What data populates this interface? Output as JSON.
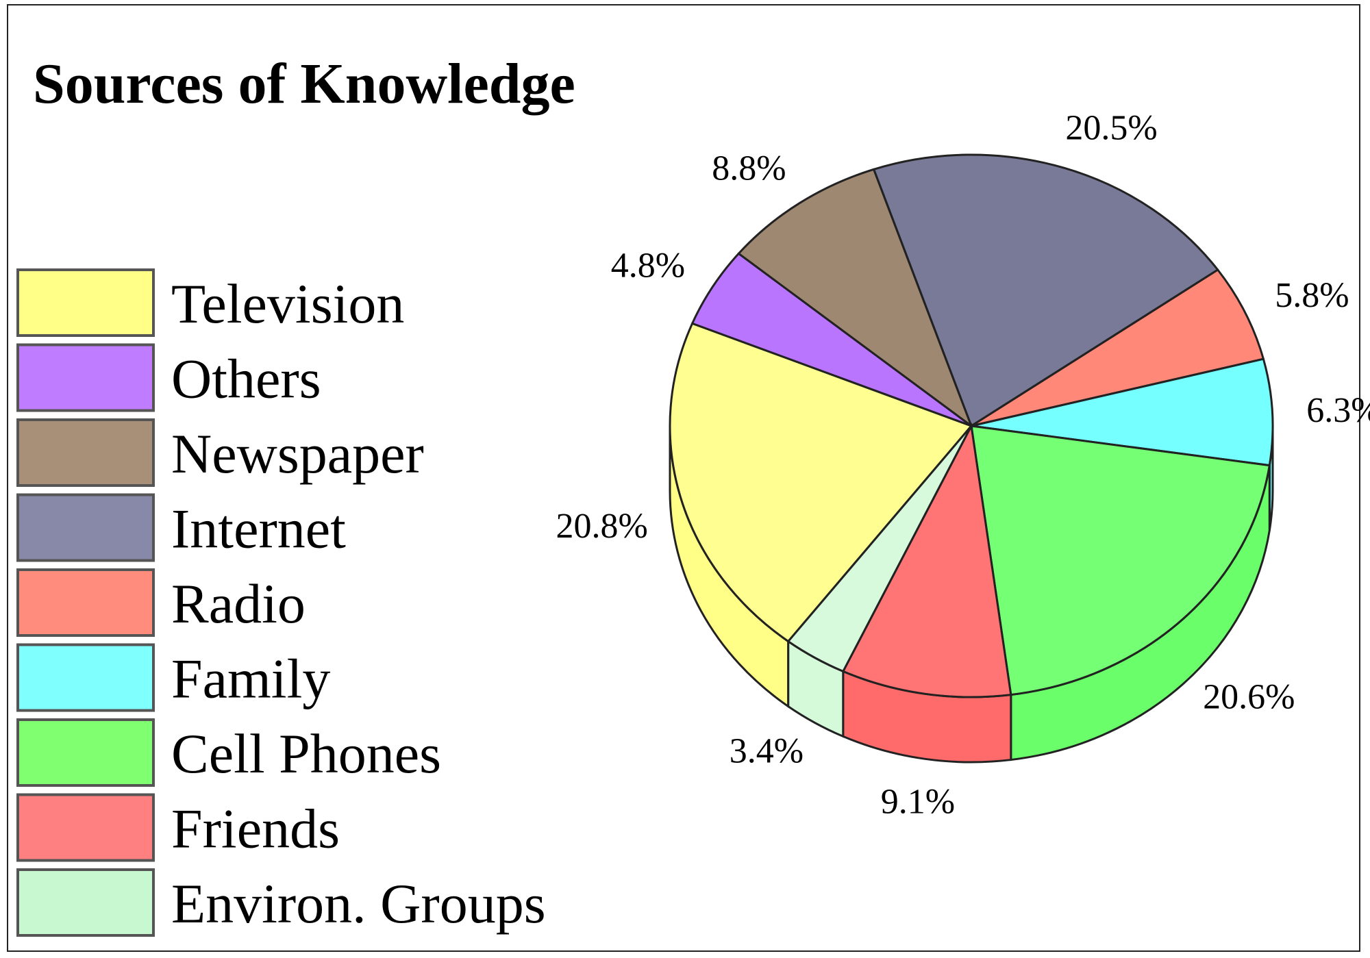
{
  "chart_data": {
    "type": "pie",
    "title": "Sources of Knowledge",
    "legend_position": "left",
    "categories": [
      "Television",
      "Others",
      "Newspaper",
      "Internet",
      "Radio",
      "Family",
      "Cell Phones",
      "Friends",
      "Environ. Groups"
    ],
    "values": [
      20.8,
      4.8,
      8.8,
      20.5,
      5.8,
      6.3,
      20.6,
      9.1,
      3.4
    ],
    "value_labels": [
      "20.8%",
      "4.8%",
      "8.8%",
      "20.5%",
      "5.8%",
      "6.3%",
      "20.6%",
      "9.1%",
      "3.4%"
    ],
    "unit": "%",
    "colors": [
      "#ffff66",
      "#a040ff",
      "#7a5a3a",
      "#454570",
      "#ff5a45",
      "#40ffff",
      "#40ff40",
      "#ff4040",
      "#c8f8d0"
    ],
    "legend_colors": [
      "#ffff88",
      "#c07cff",
      "#a89078",
      "#8888a8",
      "#ff8c7c",
      "#80ffff",
      "#80ff70",
      "#ff8080",
      "#c8f8d0"
    ],
    "style": "3d-exploded-pie"
  }
}
